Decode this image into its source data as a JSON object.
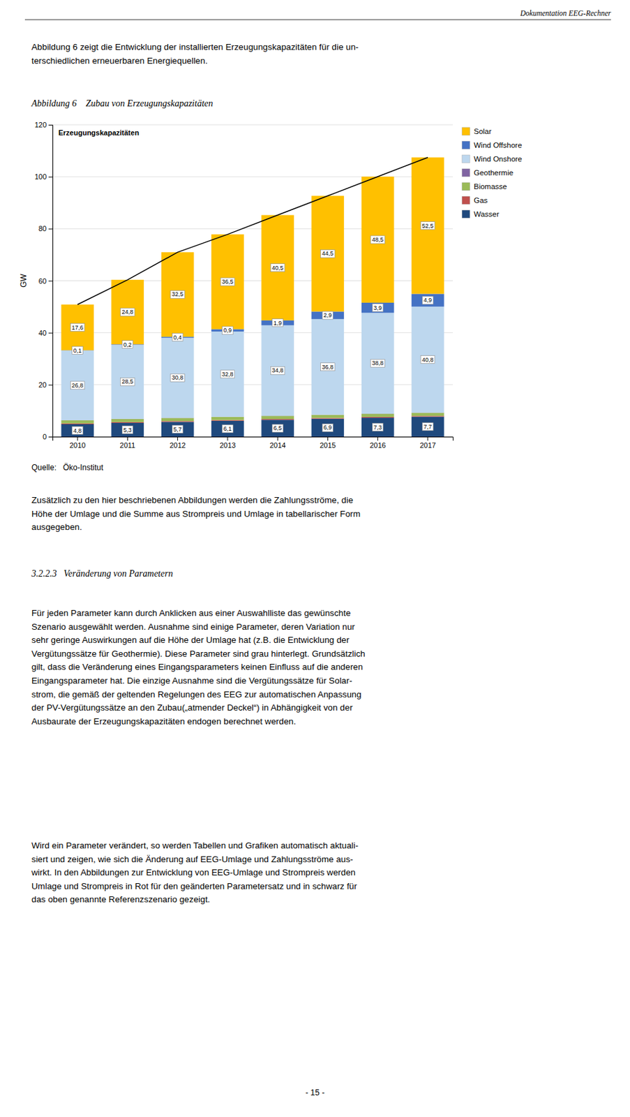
{
  "header": "Dokumentation EEG-Rechner",
  "intro": [
    "Abbildung 6 zeigt die Entwicklung der installierten Erzeugungskapazitäten für die un-",
    "terschiedlichen erneuerbaren Energiequellen."
  ],
  "figure_title": "Abbildung 6    Zubau von Erzeugungskapazitäten",
  "source": "Quelle:   Öko-Institut",
  "after_chart": [
    "Zusätzlich zu den hier beschriebenen Abbildungen werden die Zahlungsströme, die",
    "Höhe der Umlage und die Summe aus Strompreis und Umlage in tabellarischer Form",
    "ausgegeben."
  ],
  "section_title": "3.2.2.3   Veränderung von Parametern",
  "paragraphs": [
    [
      "Für jeden Parameter kann durch Anklicken aus einer Auswahlliste das gewünschte",
      "Szenario ausgewählt werden. Ausnahme sind einige Parameter, deren Variation nur",
      "sehr geringe Auswirkungen auf die Höhe der Umlage hat (z.B. die Entwicklung der",
      "Vergütungssätze für Geothermie). Diese Parameter sind grau hinterlegt. Grundsätzlich",
      "gilt, dass die Veränderung eines Eingangsparameters keinen Einfluss auf die anderen",
      "Eingangsparameter hat. Die einzige Ausnahme sind die Vergütungssätze für Solar-",
      "strom, die gemäß der geltenden Regelungen des EEG zur automatischen Anpassung",
      "der PV-Vergütungssätze an den Zubau(„atmender Deckel“) in Abhängigkeit von der",
      "Ausbaurate der Erzeugungskapazitäten endogen berechnet werden."
    ],
    [
      "Wird ein Parameter verändert, so werden Tabellen und Grafiken automatisch aktuali-",
      "siert und zeigen, wie sich die Änderung auf EEG-Umlage und Zahlungsströme aus-",
      "wirkt. In den Abbildungen zur Entwicklung von EEG-Umlage und Strompreis werden",
      "Umlage und Strompreis in Rot für den geänderten Parametersatz und in schwarz für",
      "das oben genannte Referenzszenario gezeigt."
    ]
  ],
  "page_number": "- 15 -",
  "chart_data": {
    "type": "bar",
    "title": "Erzeugungskapazitäten",
    "ylabel": "GW",
    "stacked": true,
    "grid": true,
    "legend": "right",
    "categories": [
      "2010",
      "2011",
      "2012",
      "2013",
      "2014",
      "2015",
      "2016",
      "2017"
    ],
    "ylim": [
      0,
      120
    ],
    "yticks": [
      0,
      20,
      40,
      60,
      80,
      100,
      120
    ],
    "series": [
      {
        "name": "Wasser",
        "color": "#1F497D",
        "values": [
          4.8,
          5.3,
          5.7,
          6.1,
          6.5,
          6.9,
          7.3,
          7.7
        ],
        "data_labels": true,
        "value_labels": [
          "4,8",
          "5,3",
          "5,7",
          "6,1",
          "6,5",
          "6,9",
          "7,3",
          "7,7"
        ]
      },
      {
        "name": "Gas",
        "color": "#C0504D",
        "values": [
          0.3,
          0.3,
          0.3,
          0.3,
          0.3,
          0.3,
          0.3,
          0.3
        ]
      },
      {
        "name": "Biomasse",
        "color": "#9BBB59",
        "values": [
          1.2,
          1.2,
          1.2,
          1.2,
          1.2,
          1.2,
          1.2,
          1.2
        ]
      },
      {
        "name": "Geothermie",
        "color": "#8064A2",
        "values": [
          0.05,
          0.05,
          0.05,
          0.05,
          0.05,
          0.05,
          0.05,
          0.05
        ]
      },
      {
        "name": "Wind Onshore",
        "color": "#BDD7EE",
        "values": [
          26.8,
          28.5,
          30.8,
          32.8,
          34.8,
          36.8,
          38.8,
          40.8
        ],
        "data_labels": true,
        "value_labels": [
          "26,8",
          "28,5",
          "30,8",
          "32,8",
          "34,8",
          "36,8",
          "38,8",
          "40,8"
        ]
      },
      {
        "name": "Wind Offshore",
        "color": "#4472C4",
        "values": [
          0.1,
          0.2,
          0.4,
          0.9,
          1.9,
          2.9,
          3.9,
          4.9
        ],
        "data_labels": true,
        "value_labels": [
          "0,1",
          "0,2",
          "0,4",
          "0,9",
          "1,9",
          "2,9",
          "3,9",
          "4,9"
        ]
      },
      {
        "name": "Solar",
        "color": "#FFC000",
        "values": [
          17.6,
          24.8,
          32.5,
          36.5,
          40.5,
          44.5,
          48.5,
          52.5
        ],
        "data_labels": true,
        "value_labels": [
          "17,6",
          "24,8",
          "32,5",
          "36,5",
          "40,5",
          "44,5",
          "48,5",
          "52,5"
        ]
      },
      {
        "type": "line",
        "color": "#000000",
        "values": [
          50.85,
          60.35,
          70.95,
          77.85,
          85.25,
          92.65,
          100.05,
          107.45
        ]
      }
    ]
  }
}
